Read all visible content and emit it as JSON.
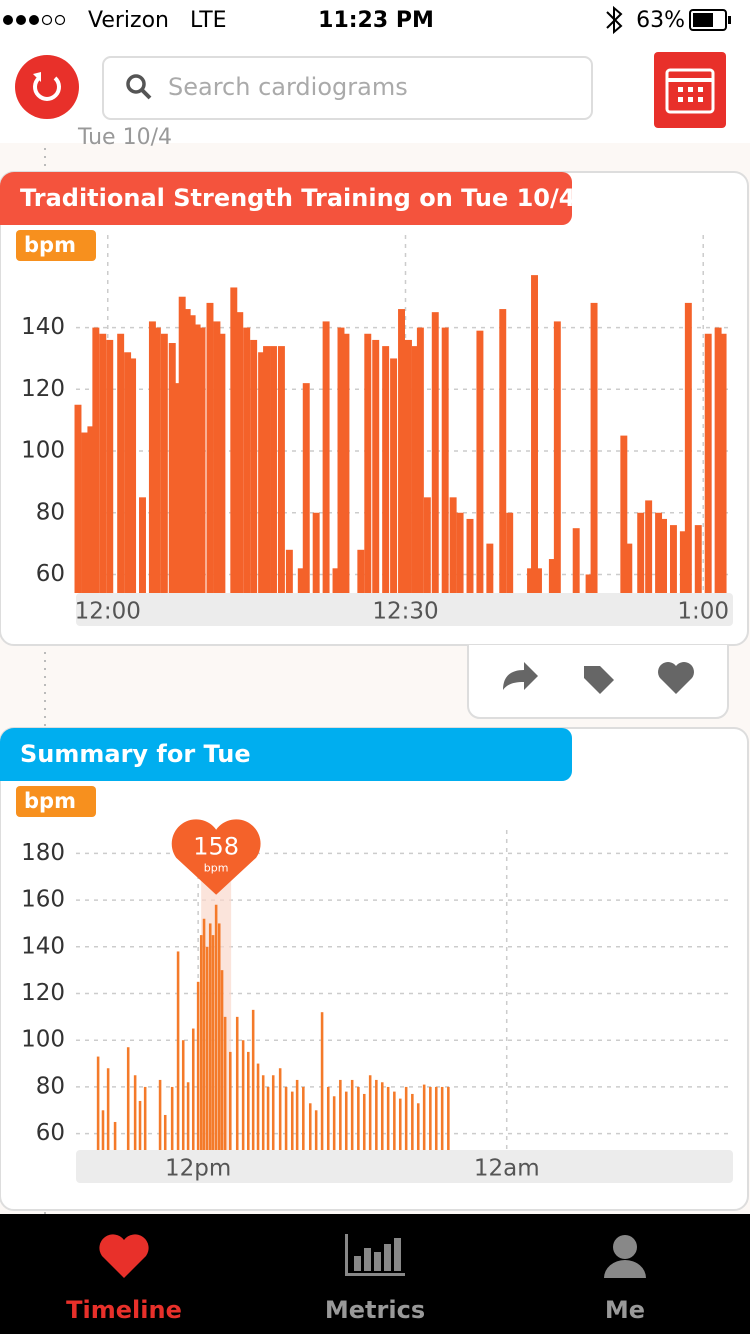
{
  "status_bar": {
    "carrier": "Verizon",
    "network": "LTE",
    "time": "11:23 PM",
    "battery": "63%"
  },
  "search_placeholder": "Search cardiograms",
  "timeline_date": "Tue 10/4",
  "chart_data": [
    {
      "type": "bar",
      "title": "Traditional Strength Training on Tue 10/4",
      "unit": "bpm",
      "color": "#f4622a",
      "title_color": "#f4533d",
      "x": [
        -3,
        -2.3,
        -1.7,
        -1.2,
        -0.5,
        0.2,
        1.3,
        2,
        2.5,
        3.5,
        4.5,
        5,
        5.7,
        6.5,
        7,
        7.5,
        8,
        8.5,
        9,
        9.5,
        10.3,
        11,
        11.5,
        12.7,
        13.3,
        14,
        14.7,
        15.5,
        16,
        16.7,
        17.5,
        18.3,
        19.5,
        20,
        21,
        22,
        23,
        23.5,
        24,
        25.5,
        26.2,
        27,
        28,
        28.8,
        29.6,
        30.3,
        31,
        31.5,
        32.2,
        33,
        34,
        34.8,
        35.5,
        36.5,
        37.5,
        38.5,
        39.8,
        40.5,
        42.6,
        43,
        43.4,
        44.8,
        45.3,
        47.2,
        48.5,
        49,
        52,
        52.5,
        53.7,
        54.5,
        55.5,
        56,
        57,
        58,
        58.5,
        59.5,
        60.5,
        61.5,
        62
      ],
      "values": [
        115,
        106,
        108,
        140,
        138,
        136,
        138,
        132,
        130,
        85,
        142,
        140,
        138,
        135,
        122,
        150,
        146,
        144,
        141,
        140,
        148,
        142,
        138,
        153,
        145,
        140,
        136,
        132,
        134,
        134,
        134,
        68,
        62,
        122,
        80,
        142,
        62,
        140,
        138,
        68,
        138,
        136,
        134,
        130,
        146,
        136,
        134,
        140,
        85,
        145,
        140,
        85,
        80,
        78,
        139,
        70,
        146,
        80,
        62,
        157,
        62,
        65,
        142,
        75,
        60,
        148,
        105,
        70,
        80,
        84,
        80,
        78,
        76,
        74,
        148,
        76,
        138,
        140,
        138
      ],
      "bar_width": 0.7,
      "xlim": [
        -3.2,
        63
      ],
      "xticks": [
        {
          "value": 0,
          "label": "12:00"
        },
        {
          "value": 30,
          "label": "12:30"
        },
        {
          "value": 60,
          "label": "1:00"
        }
      ],
      "ylim": [
        54,
        170
      ],
      "yticks": [
        60,
        80,
        100,
        120,
        140
      ],
      "grid": true
    },
    {
      "type": "bar",
      "title": "Summary for Tue",
      "unit": "bpm",
      "color": "#f47a2a",
      "title_color": "#00aeef",
      "x": [
        -3.89,
        -3.7,
        -3.5,
        -3.23,
        -2.72,
        -2.45,
        -2.26,
        -2.06,
        -1.48,
        -1.28,
        -1.01,
        -0.78,
        -0.58,
        -0.39,
        -0.19,
        0,
        0.12,
        0.23,
        0.35,
        0.47,
        0.58,
        0.7,
        0.82,
        0.93,
        1.05,
        1.25,
        1.52,
        1.75,
        1.95,
        2.14,
        2.33,
        2.53,
        2.72,
        2.92,
        3.19,
        3.42,
        3.66,
        3.85,
        4.09,
        4.36,
        4.59,
        4.82,
        5.06,
        5.29,
        5.53,
        5.76,
        5.99,
        6.23,
        6.46,
        6.69,
        6.93,
        7.16,
        7.39,
        7.63,
        7.86,
        8.09,
        8.33,
        8.56,
        8.79,
        9.03,
        9.26,
        9.49,
        9.73
      ],
      "values": [
        93,
        70,
        88,
        65,
        97,
        85,
        74,
        80,
        83,
        68,
        80,
        138,
        100,
        82,
        105,
        125,
        145,
        152,
        140,
        150,
        145,
        158,
        150,
        130,
        110,
        95,
        110,
        100,
        95,
        113,
        90,
        85,
        80,
        85,
        88,
        80,
        78,
        83,
        80,
        73,
        70,
        112,
        80,
        76,
        83,
        78,
        83,
        80,
        77,
        85,
        83,
        82,
        80,
        78,
        75,
        80,
        77,
        73,
        81,
        80,
        80,
        80,
        80
      ],
      "bar_width": 0.1,
      "annotation": {
        "x": 0.7,
        "value": 158,
        "unit": "bpm"
      },
      "xlim": [
        -4.75,
        20.8
      ],
      "xticks": [
        {
          "value": 0,
          "label": "12pm"
        },
        {
          "value": 12,
          "label": "12am"
        }
      ],
      "ylim": [
        53,
        190
      ],
      "yticks": [
        60,
        80,
        100,
        120,
        140,
        160,
        180
      ],
      "grid": true
    }
  ],
  "tabs": [
    "Timeline",
    "Metrics",
    "Me"
  ]
}
